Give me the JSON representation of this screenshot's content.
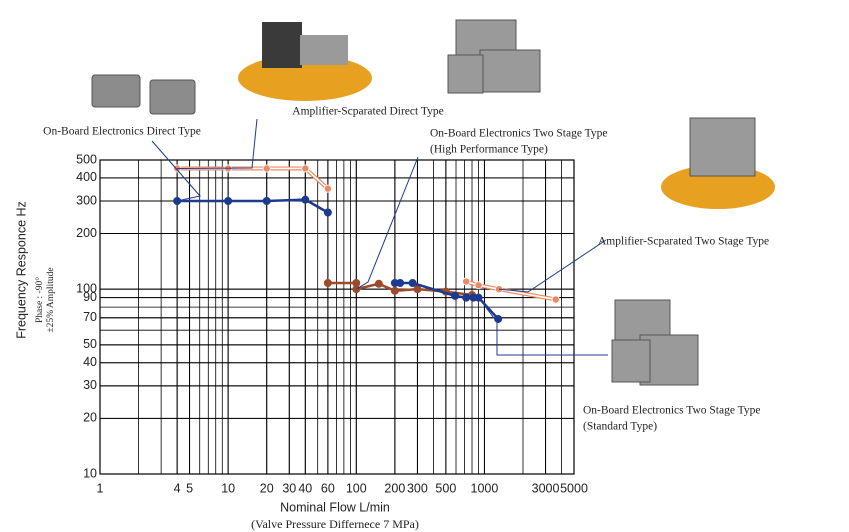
{
  "chart_data": {
    "type": "line",
    "log_x": true,
    "log_y": true,
    "grid": true,
    "minor_grid": true,
    "xlim": [
      1,
      5000
    ],
    "ylim": [
      10,
      500
    ],
    "xticks": [
      1,
      4,
      5,
      10,
      20,
      30,
      40,
      60,
      100,
      200,
      300,
      500,
      1000,
      3000,
      5000
    ],
    "yticks": [
      10,
      20,
      30,
      40,
      50,
      70,
      90,
      100,
      200,
      300,
      400,
      500
    ],
    "x_label": "Nominal Flow  L/min",
    "x_label_note": "(Valve Pressure Differnece 7 MPa)",
    "y_label": "Frequency Responce  Hz",
    "y_label_note": [
      "Phase : -90°",
      "±25% Amplitude"
    ],
    "series": [
      {
        "name": "Amplifier-Scparated Direct Type",
        "color": "#ee8a62",
        "style": "double",
        "x": [
          4,
          10,
          20,
          40,
          60
        ],
        "values": [
          450,
          450,
          450,
          450,
          350
        ]
      },
      {
        "name": "On-Board Electronics Direct Type",
        "color": "#1c3a8e",
        "style": "solid",
        "x": [
          4,
          10,
          20,
          40,
          60
        ],
        "values": [
          300,
          300,
          300,
          305,
          260
        ]
      },
      {
        "name": "On-Board Electronics  Two Stage Type",
        "note": "(High Performance Type)",
        "color": "#9c4a2a",
        "style": "solid",
        "x": [
          60,
          100,
          100,
          150,
          200,
          300,
          500,
          800
        ],
        "values": [
          108,
          108,
          100,
          107,
          98,
          100,
          97,
          93
        ]
      },
      {
        "name": "On-Board Electronics  Two Stage Type",
        "note": "(Standard Type)",
        "color": "#1c3a8e",
        "style": "solid",
        "x": [
          200,
          220,
          275,
          590,
          720,
          820,
          900,
          1280
        ],
        "values": [
          108,
          108,
          108,
          92,
          90,
          90,
          90,
          69
        ]
      },
      {
        "name": "Amplifier-Scparated Two Stage Type",
        "color": "#ee8a62",
        "style": "double",
        "x": [
          720,
          900,
          1300,
          3600
        ],
        "values": [
          110,
          105,
          100,
          88
        ]
      }
    ]
  }
}
